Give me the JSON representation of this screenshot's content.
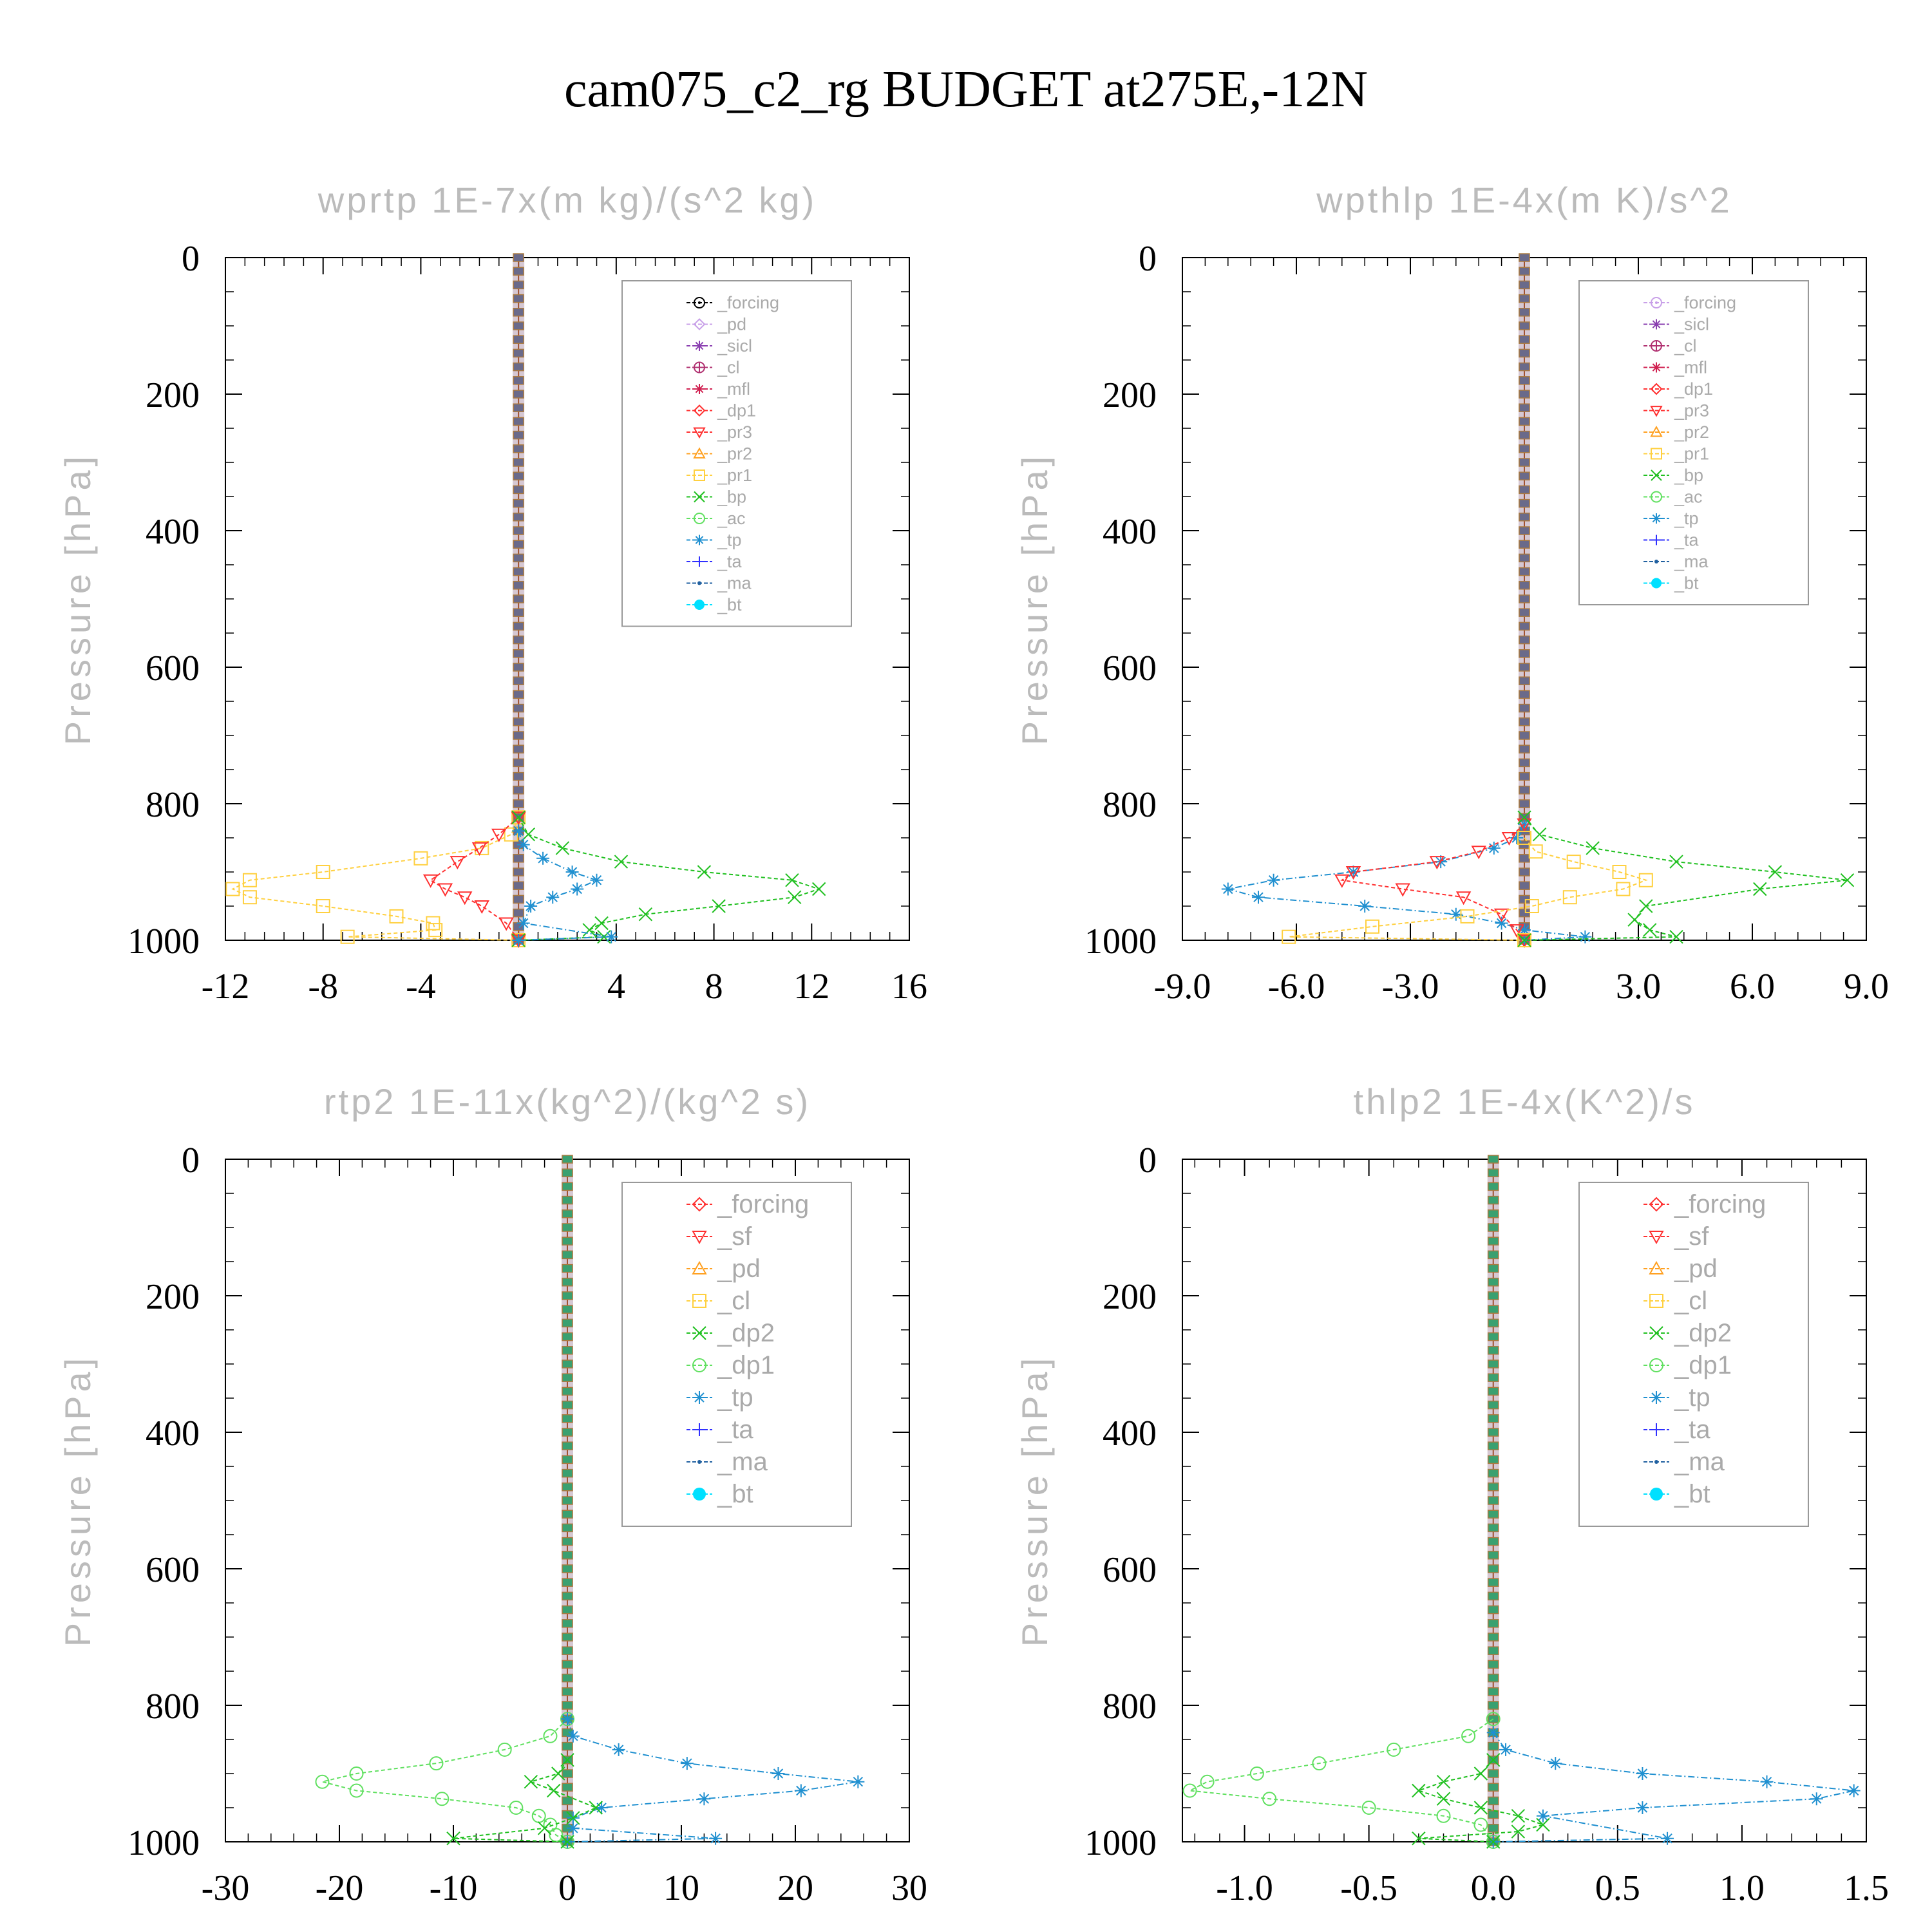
{
  "figure": {
    "title": "cam075_c2_rg  BUDGET at275E,-12N"
  },
  "chart_data": [
    {
      "type": "line",
      "title": "wprtp   1E-7x(m kg)/(s^2 kg)",
      "xlabel": "",
      "ylabel": "Pressure [hPa]",
      "xlim": [
        -12,
        16
      ],
      "ylim": [
        1000,
        0
      ],
      "xticks": [
        "-12",
        "-8",
        "-4",
        "0",
        "4",
        "8",
        "12",
        "16"
      ],
      "xtick_values": [
        -12,
        -8,
        -4,
        0,
        4,
        8,
        12,
        16
      ],
      "yticks": [
        "0",
        "200",
        "400",
        "600",
        "800",
        "1000"
      ],
      "ytick_values": [
        0,
        200,
        400,
        600,
        800,
        1000
      ],
      "legend_position": "top-right",
      "legend": [
        {
          "label": "_forcing",
          "color": "#000000",
          "marker": "circle-dot"
        },
        {
          "label": "_pd",
          "color": "#c8a0e8",
          "marker": "diamond"
        },
        {
          "label": "_sicl",
          "color": "#8a3fb0",
          "marker": "star"
        },
        {
          "label": "_cl",
          "color": "#b03070",
          "marker": "circle-plus"
        },
        {
          "label": "_mfl",
          "color": "#d02050",
          "marker": "star"
        },
        {
          "label": "_dp1",
          "color": "#ff3030",
          "marker": "diamond"
        },
        {
          "label": "_pr3",
          "color": "#ff3030",
          "marker": "triangle-down"
        },
        {
          "label": "_pr2",
          "color": "#ffa020",
          "marker": "triangle"
        },
        {
          "label": "_pr1",
          "color": "#ffd040",
          "marker": "square"
        },
        {
          "label": "_bp",
          "color": "#20c020",
          "marker": "x"
        },
        {
          "label": "_ac",
          "color": "#60e060",
          "marker": "circle"
        },
        {
          "label": "_tp",
          "color": "#2090d0",
          "marker": "asterisk"
        },
        {
          "label": "_ta",
          "color": "#3030ff",
          "marker": "plus"
        },
        {
          "label": "_ma",
          "color": "#2060a0",
          "marker": "dot"
        },
        {
          "label": "_bt",
          "color": "#00e0ff",
          "marker": "filled-circle"
        }
      ],
      "series": [
        {
          "name": "_pr1",
          "color": "#ffd040",
          "dash": "6,4",
          "marker": "square",
          "x": [
            0,
            -0.3,
            -1.5,
            -4,
            -8,
            -11,
            -11.7,
            -11,
            -8,
            -5,
            -3.5,
            -3.4,
            -7,
            0
          ],
          "y": [
            820,
            845,
            865,
            880,
            900,
            912,
            925,
            937,
            950,
            965,
            975,
            985,
            995,
            1000
          ]
        },
        {
          "name": "_pr3",
          "color": "#ff3030",
          "dash": "6,4",
          "marker": "triangle-down",
          "x": [
            0,
            -0.8,
            -1.6,
            -2.5,
            -3.6,
            -3.0,
            -2.2,
            -1.5,
            -0.5,
            0
          ],
          "y": [
            820,
            845,
            865,
            885,
            912,
            925,
            937,
            950,
            975,
            1000
          ]
        },
        {
          "name": "_bp",
          "color": "#20c020",
          "dash": "6,4",
          "marker": "x",
          "x": [
            0,
            0.4,
            1.8,
            4.2,
            7.6,
            11.2,
            12.3,
            11.3,
            8.2,
            5.2,
            3.4,
            2.9,
            3.5,
            0
          ],
          "y": [
            820,
            845,
            865,
            885,
            900,
            912,
            925,
            937,
            950,
            962,
            975,
            985,
            995,
            1000
          ]
        },
        {
          "name": "_tp",
          "color": "#2090d0",
          "dash": "10,4,2,4",
          "marker": "asterisk",
          "x": [
            0,
            0.2,
            1.0,
            2.2,
            3.2,
            2.4,
            1.4,
            0.5,
            0.2,
            3.8,
            0
          ],
          "y": [
            840,
            860,
            880,
            900,
            912,
            925,
            937,
            950,
            975,
            995,
            1000
          ]
        }
      ]
    },
    {
      "type": "line",
      "title": "wpthlp   1E-4x(m K)/s^2",
      "xlabel": "",
      "ylabel": "Pressure [hPa]",
      "xlim": [
        -9,
        9
      ],
      "ylim": [
        1000,
        0
      ],
      "xticks": [
        "-9.0",
        "-6.0",
        "-3.0",
        "0.0",
        "3.0",
        "6.0",
        "9.0"
      ],
      "xtick_values": [
        -9,
        -6,
        -3,
        0,
        3,
        6,
        9
      ],
      "yticks": [
        "0",
        "200",
        "400",
        "600",
        "800",
        "1000"
      ],
      "ytick_values": [
        0,
        200,
        400,
        600,
        800,
        1000
      ],
      "legend_position": "top-right",
      "legend": [
        {
          "label": "_forcing",
          "color": "#c8a0e8",
          "marker": "circle-dot"
        },
        {
          "label": "_sicl",
          "color": "#8a3fb0",
          "marker": "star"
        },
        {
          "label": "_cl",
          "color": "#b03070",
          "marker": "circle-plus"
        },
        {
          "label": "_mfl",
          "color": "#d02050",
          "marker": "star"
        },
        {
          "label": "_dp1",
          "color": "#ff3030",
          "marker": "diamond"
        },
        {
          "label": "_pr3",
          "color": "#ff3030",
          "marker": "triangle-down"
        },
        {
          "label": "_pr2",
          "color": "#ffa020",
          "marker": "triangle"
        },
        {
          "label": "_pr1",
          "color": "#ffd040",
          "marker": "square"
        },
        {
          "label": "_bp",
          "color": "#20c020",
          "marker": "x"
        },
        {
          "label": "_ac",
          "color": "#60e060",
          "marker": "circle"
        },
        {
          "label": "_tp",
          "color": "#2090d0",
          "marker": "asterisk"
        },
        {
          "label": "_ta",
          "color": "#3030ff",
          "marker": "plus"
        },
        {
          "label": "_ma",
          "color": "#2060a0",
          "marker": "dot"
        },
        {
          "label": "_bt",
          "color": "#00e0ff",
          "marker": "filled-circle"
        }
      ],
      "series": [
        {
          "name": "_tp",
          "color": "#2090d0",
          "dash": "10,4,2,4",
          "marker": "asterisk",
          "x": [
            0,
            -0.2,
            -0.8,
            -2.2,
            -4.5,
            -6.6,
            -7.8,
            -7.0,
            -4.2,
            -1.8,
            -0.6,
            0,
            1.6,
            0
          ],
          "y": [
            830,
            850,
            865,
            885,
            900,
            912,
            925,
            937,
            950,
            962,
            975,
            985,
            995,
            1000
          ]
        },
        {
          "name": "_pr3",
          "color": "#ff3030",
          "dash": "6,4",
          "marker": "triangle-down",
          "x": [
            0,
            -0.4,
            -1.2,
            -2.3,
            -4.5,
            -4.8,
            -3.2,
            -1.6,
            -0.6,
            -0.2,
            0
          ],
          "y": [
            830,
            850,
            870,
            885,
            900,
            912,
            925,
            937,
            962,
            985,
            1000
          ]
        },
        {
          "name": "_pr1",
          "color": "#ffd040",
          "dash": "6,4",
          "marker": "square",
          "x": [
            0,
            0.3,
            1.3,
            2.5,
            3.2,
            2.6,
            1.2,
            0.2,
            -1.5,
            -4.0,
            -6.2,
            0
          ],
          "y": [
            850,
            870,
            885,
            900,
            912,
            925,
            937,
            950,
            965,
            980,
            995,
            1000
          ]
        },
        {
          "name": "_bp",
          "color": "#20c020",
          "dash": "6,4",
          "marker": "x",
          "x": [
            0,
            0.4,
            1.8,
            4.0,
            6.6,
            8.5,
            6.2,
            3.2,
            2.9,
            3.3,
            4.0,
            0
          ],
          "y": [
            820,
            845,
            865,
            885,
            900,
            912,
            925,
            950,
            970,
            985,
            995,
            1000
          ]
        }
      ]
    },
    {
      "type": "line",
      "title": "rtp2   1E-11x(kg^2)/(kg^2 s)",
      "xlabel": "",
      "ylabel": "Pressure [hPa]",
      "xlim": [
        -30,
        30
      ],
      "ylim": [
        1000,
        0
      ],
      "xticks": [
        "-30",
        "-20",
        "-10",
        "0",
        "10",
        "20",
        "30"
      ],
      "xtick_values": [
        -30,
        -20,
        -10,
        0,
        10,
        20,
        30
      ],
      "yticks": [
        "0",
        "200",
        "400",
        "600",
        "800",
        "1000"
      ],
      "ytick_values": [
        0,
        200,
        400,
        600,
        800,
        1000
      ],
      "legend_position": "top-right",
      "legend": [
        {
          "label": "_forcing",
          "color": "#ff3030",
          "marker": "diamond"
        },
        {
          "label": "_sf",
          "color": "#ff3030",
          "marker": "triangle-down"
        },
        {
          "label": "_pd",
          "color": "#ffa020",
          "marker": "triangle"
        },
        {
          "label": "_cl",
          "color": "#ffd040",
          "marker": "square"
        },
        {
          "label": "_dp2",
          "color": "#20c020",
          "marker": "x"
        },
        {
          "label": "_dp1",
          "color": "#60e060",
          "marker": "circle"
        },
        {
          "label": "_tp",
          "color": "#2090d0",
          "marker": "asterisk"
        },
        {
          "label": "_ta",
          "color": "#3030ff",
          "marker": "plus"
        },
        {
          "label": "_ma",
          "color": "#2060a0",
          "marker": "dot"
        },
        {
          "label": "_bt",
          "color": "#00e0ff",
          "marker": "filled-circle"
        }
      ],
      "series": [
        {
          "name": "_dp1",
          "color": "#60e060",
          "dash": "6,4",
          "marker": "circle",
          "x": [
            0,
            -1.5,
            -5.5,
            -11.5,
            -18.5,
            -21.5,
            -18.5,
            -11,
            -4.5,
            -2.5,
            -1.5,
            -1,
            0
          ],
          "y": [
            820,
            845,
            865,
            885,
            900,
            912,
            925,
            937,
            950,
            962,
            975,
            990,
            1000
          ]
        },
        {
          "name": "_tp",
          "color": "#2090d0",
          "dash": "10,4,2,4",
          "marker": "asterisk",
          "x": [
            0,
            0.5,
            4.5,
            10.5,
            18.5,
            25.5,
            20.5,
            12,
            3,
            0.5,
            0.5,
            13,
            0
          ],
          "y": [
            820,
            845,
            865,
            885,
            900,
            912,
            925,
            937,
            950,
            965,
            980,
            995,
            1000
          ]
        },
        {
          "name": "_dp2",
          "color": "#20c020",
          "dash": "6,4",
          "marker": "x",
          "x": [
            0,
            -0.8,
            -3.2,
            -1.2,
            2.5,
            0.5,
            -2,
            -10,
            0
          ],
          "y": [
            880,
            900,
            912,
            925,
            950,
            965,
            980,
            995,
            1000
          ]
        }
      ]
    },
    {
      "type": "line",
      "title": "thlp2   1E-4x(K^2)/s",
      "xlabel": "",
      "ylabel": "Pressure [hPa]",
      "xlim": [
        -1.25,
        1.5
      ],
      "ylim": [
        1000,
        0
      ],
      "xticks": [
        "-1.0",
        "-0.5",
        "0.0",
        "0.5",
        "1.0",
        "1.5"
      ],
      "xtick_values": [
        -1.0,
        -0.5,
        0.0,
        0.5,
        1.0,
        1.5
      ],
      "yticks": [
        "0",
        "200",
        "400",
        "600",
        "800",
        "1000"
      ],
      "ytick_values": [
        0,
        200,
        400,
        600,
        800,
        1000
      ],
      "legend_position": "top-right",
      "legend": [
        {
          "label": "_forcing",
          "color": "#ff3030",
          "marker": "diamond"
        },
        {
          "label": "_sf",
          "color": "#ff3030",
          "marker": "triangle-down"
        },
        {
          "label": "_pd",
          "color": "#ffa020",
          "marker": "triangle"
        },
        {
          "label": "_cl",
          "color": "#ffd040",
          "marker": "square"
        },
        {
          "label": "_dp2",
          "color": "#20c020",
          "marker": "x"
        },
        {
          "label": "_dp1",
          "color": "#60e060",
          "marker": "circle"
        },
        {
          "label": "_tp",
          "color": "#2090d0",
          "marker": "asterisk"
        },
        {
          "label": "_ta",
          "color": "#3030ff",
          "marker": "plus"
        },
        {
          "label": "_ma",
          "color": "#2060a0",
          "marker": "dot"
        },
        {
          "label": "_bt",
          "color": "#00e0ff",
          "marker": "filled-circle"
        }
      ],
      "series": [
        {
          "name": "_dp1",
          "color": "#60e060",
          "dash": "6,4",
          "marker": "circle",
          "x": [
            0,
            -0.1,
            -0.4,
            -0.7,
            -0.95,
            -1.15,
            -1.22,
            -0.9,
            -0.5,
            -0.2,
            -0.05,
            0
          ],
          "y": [
            820,
            845,
            865,
            885,
            900,
            912,
            925,
            937,
            950,
            962,
            975,
            1000
          ]
        },
        {
          "name": "_tp",
          "color": "#2090d0",
          "dash": "10,4,2,4",
          "marker": "asterisk",
          "x": [
            0,
            0.05,
            0.25,
            0.6,
            1.1,
            1.45,
            1.3,
            0.6,
            0.2,
            0.7,
            0
          ],
          "y": [
            840,
            865,
            885,
            900,
            912,
            925,
            937,
            950,
            962,
            995,
            1000
          ]
        },
        {
          "name": "_dp2",
          "color": "#20c020",
          "dash": "6,4",
          "marker": "x",
          "x": [
            0,
            -0.05,
            -0.2,
            -0.3,
            -0.2,
            -0.05,
            0.1,
            0.2,
            0.1,
            -0.3,
            0
          ],
          "y": [
            880,
            900,
            912,
            925,
            937,
            950,
            962,
            975,
            985,
            995,
            1000
          ]
        }
      ]
    }
  ]
}
